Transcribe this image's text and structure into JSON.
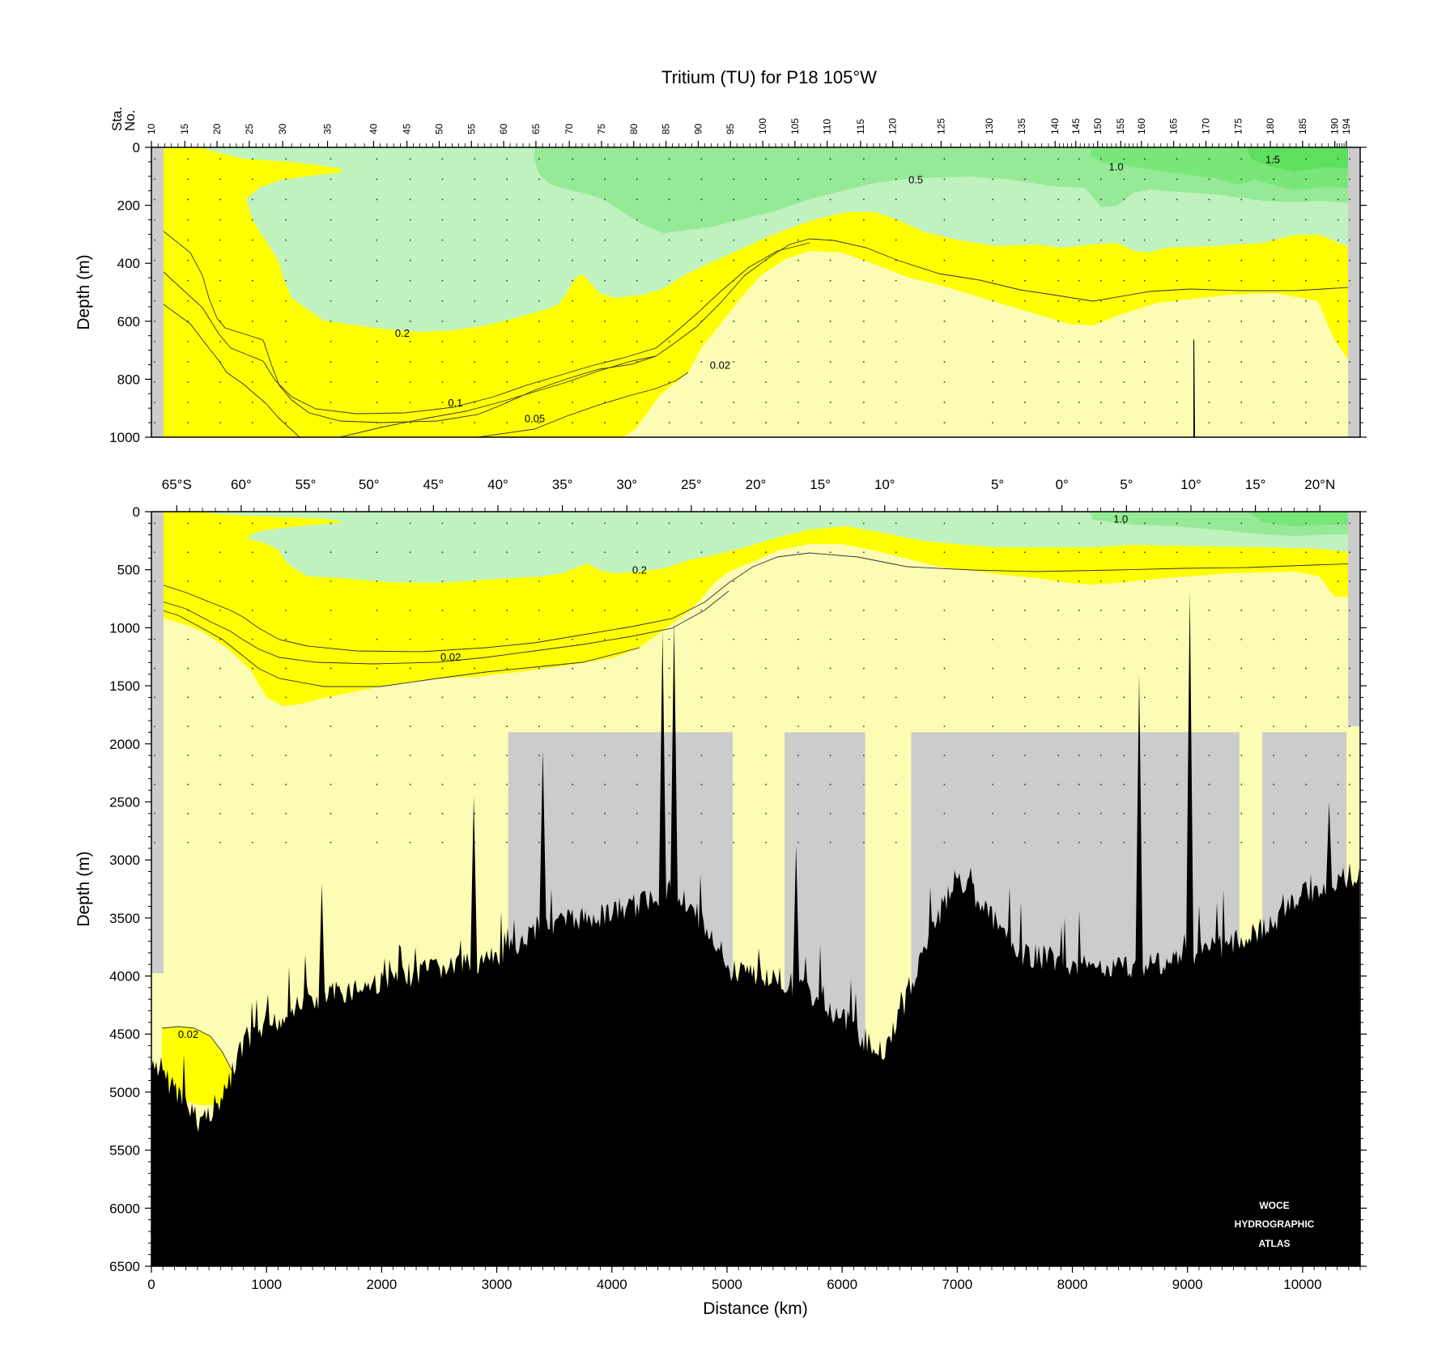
{
  "title": "Tritium (TU) for P18 105°W",
  "colors": {
    "pale_yellow": "#fcfcb4",
    "yellow": "#ffff00",
    "light_green": "#bff2bf",
    "mid_green": "#96e996",
    "green": "#78e678",
    "gray": "#cccccc",
    "bottom": "#000000"
  },
  "chart_data": [
    {
      "type": "contour",
      "panel": "upper",
      "ylabel": "Depth (m)",
      "ylim": [
        1000,
        0
      ],
      "xlim": [
        0,
        10500
      ],
      "yticks": [
        0,
        200,
        400,
        600,
        800,
        1000
      ],
      "station_axis_label": [
        "Sta.",
        "No."
      ],
      "stations": [
        "10",
        "15",
        "20",
        "25",
        "30",
        "35",
        "40",
        "45",
        "50",
        "55",
        "60",
        "65",
        "70",
        "75",
        "80",
        "85",
        "90",
        "95",
        "100",
        "105",
        "110",
        "115",
        "120",
        "125",
        "130",
        "135",
        "140",
        "145",
        "150",
        "155",
        "160",
        "165",
        "170",
        "175",
        "180",
        "185",
        "190",
        "194"
      ],
      "station_km": [
        0,
        290,
        570,
        850,
        1140,
        1530,
        1930,
        2220,
        2500,
        2780,
        3060,
        3340,
        3630,
        3910,
        4190,
        4470,
        4750,
        5030,
        5310,
        5590,
        5870,
        6160,
        6440,
        6860,
        7280,
        7560,
        7850,
        8030,
        8220,
        8420,
        8600,
        8880,
        9160,
        9440,
        9720,
        10000,
        10280,
        10380
      ],
      "contour_levels": [
        0.02,
        0.05,
        0.1,
        0.2,
        0.5,
        1.0,
        1.5
      ],
      "contour_labels": [
        {
          "text": "1.5",
          "x": 9740,
          "y": 40
        },
        {
          "text": "1.0",
          "x": 8380,
          "y": 65
        },
        {
          "text": "0.5",
          "x": 6640,
          "y": 110
        },
        {
          "text": "0.2",
          "x": 2180,
          "y": 640
        },
        {
          "text": "0.1",
          "x": 2640,
          "y": 880
        },
        {
          "text": "0.05",
          "x": 3330,
          "y": 935
        },
        {
          "text": "0.02",
          "x": 4940,
          "y": 750
        }
      ],
      "grid": false
    },
    {
      "type": "contour",
      "panel": "lower",
      "ylabel": "Depth (m)",
      "xlabel": "Distance (km)",
      "ylim": [
        6500,
        0
      ],
      "xlim": [
        0,
        10500
      ],
      "yticks": [
        0,
        500,
        1000,
        1500,
        2000,
        2500,
        3000,
        3500,
        4000,
        4500,
        5000,
        5500,
        6000,
        6500
      ],
      "xticks": [
        0,
        1000,
        2000,
        3000,
        4000,
        5000,
        6000,
        7000,
        8000,
        9000,
        10000
      ],
      "latitude_labels": [
        "65°S",
        "60°",
        "55°",
        "50°",
        "45°",
        "40°",
        "35°",
        "30°",
        "25°",
        "20°",
        "15°",
        "10°",
        "5°",
        "0°",
        "5°",
        "10°",
        "15°",
        "20°N"
      ],
      "latitude_km": [
        220,
        780,
        1340,
        1890,
        2450,
        3010,
        3570,
        4130,
        4690,
        5250,
        5810,
        6370,
        7350,
        7910,
        8470,
        9030,
        9590,
        10150
      ],
      "contour_labels": [
        {
          "text": "1.0",
          "x": 8420,
          "y": 60
        },
        {
          "text": "0.2",
          "x": 4240,
          "y": 500
        },
        {
          "text": "0.02",
          "x": 2600,
          "y": 1250
        },
        {
          "text": "0.02",
          "x": 320,
          "y": 4500
        }
      ],
      "unsampled_depth_bands": [
        {
          "x0": 3100,
          "x1": 5050,
          "top": 1900
        },
        {
          "x0": 5500,
          "x1": 6200,
          "top": 1900
        },
        {
          "x0": 6600,
          "x1": 9450,
          "top": 1900
        },
        {
          "x0": 9650,
          "x1": 10380,
          "top": 1900
        }
      ],
      "bathymetry_x": [
        0,
        200,
        400,
        600,
        800,
        1000,
        1300,
        1600,
        2000,
        2400,
        2800,
        3000,
        3200,
        3400,
        3800,
        4200,
        4500,
        4700,
        5000,
        5400,
        5800,
        6200,
        6350,
        6500,
        6700,
        6900,
        7000,
        7200,
        7500,
        7800,
        8200,
        8600,
        9000,
        9400,
        9600,
        9800,
        10000,
        10200,
        10380,
        10500
      ],
      "bathymetry_depth": [
        4800,
        4950,
        5250,
        5100,
        4600,
        4450,
        4250,
        4150,
        4050,
        3950,
        3900,
        3850,
        3700,
        3550,
        3500,
        3400,
        3250,
        3400,
        3950,
        4000,
        4200,
        4550,
        4650,
        4350,
        3800,
        3350,
        3150,
        3350,
        3800,
        3850,
        3950,
        3900,
        3850,
        3700,
        3650,
        3500,
        3300,
        3200,
        3150,
        3100
      ],
      "grid": false
    }
  ],
  "watermark": [
    "WOCE",
    "HYDROGRAPHIC",
    "ATLAS"
  ]
}
